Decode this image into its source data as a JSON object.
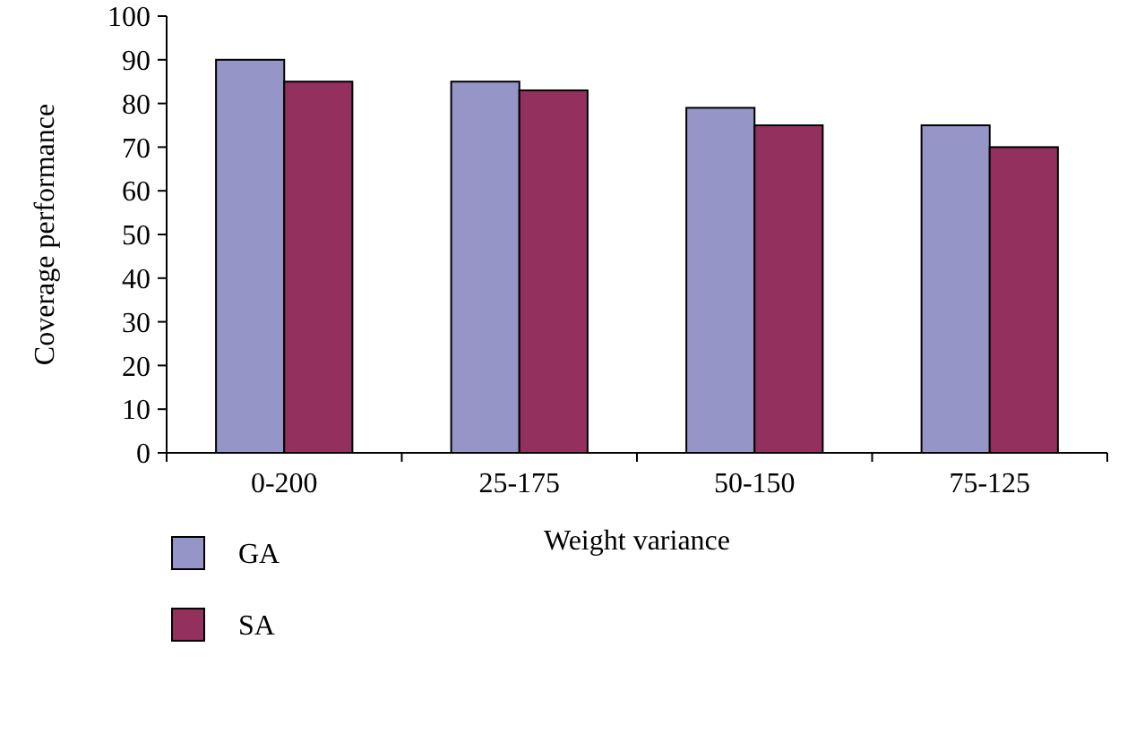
{
  "chart_data": {
    "type": "bar",
    "xlabel": "Weight variance",
    "ylabel": "Coverage performance",
    "categories": [
      "0-200",
      "25-175",
      "50-150",
      "75-125"
    ],
    "series": [
      {
        "name": "GA",
        "color": "#9595c8",
        "values": [
          90,
          85,
          79,
          75
        ]
      },
      {
        "name": "SA",
        "color": "#93305e",
        "values": [
          85,
          83,
          75,
          70
        ]
      }
    ],
    "ylim": [
      0,
      100
    ],
    "yticks": [
      0,
      10,
      20,
      30,
      40,
      50,
      60,
      70,
      80,
      90,
      100
    ],
    "grid": false,
    "legend": "bottom"
  }
}
